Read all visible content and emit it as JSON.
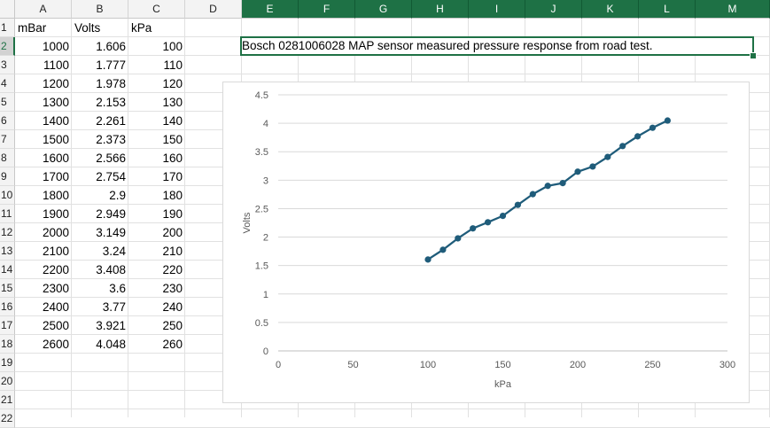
{
  "columns": [
    "A",
    "B",
    "C",
    "D",
    "E",
    "F",
    "G",
    "H",
    "I",
    "J",
    "K",
    "L",
    "M"
  ],
  "selected_columns": [
    "E",
    "F",
    "G",
    "H",
    "I",
    "J",
    "K",
    "L",
    "M"
  ],
  "rows": [
    "1",
    "2",
    "3",
    "4",
    "5",
    "6",
    "7",
    "8",
    "9",
    "10",
    "11",
    "12",
    "13",
    "14",
    "15",
    "16",
    "17",
    "18",
    "19",
    "20",
    "21",
    "22"
  ],
  "selected_row": "2",
  "table": {
    "headers": [
      "mBar",
      "Volts",
      "kPa"
    ],
    "rows": [
      [
        "1000",
        "1.606",
        "100"
      ],
      [
        "1100",
        "1.777",
        "110"
      ],
      [
        "1200",
        "1.978",
        "120"
      ],
      [
        "1300",
        "2.153",
        "130"
      ],
      [
        "1400",
        "2.261",
        "140"
      ],
      [
        "1500",
        "2.373",
        "150"
      ],
      [
        "1600",
        "2.566",
        "160"
      ],
      [
        "1700",
        "2.754",
        "170"
      ],
      [
        "1800",
        "2.9",
        "180"
      ],
      [
        "1900",
        "2.949",
        "190"
      ],
      [
        "2000",
        "3.149",
        "200"
      ],
      [
        "2100",
        "3.24",
        "210"
      ],
      [
        "2200",
        "3.408",
        "220"
      ],
      [
        "2300",
        "3.6",
        "230"
      ],
      [
        "2400",
        "3.77",
        "240"
      ],
      [
        "2500",
        "3.921",
        "250"
      ],
      [
        "2600",
        "4.048",
        "260"
      ]
    ]
  },
  "note": "Bosch 0281006028 MAP sensor measured pressure response from road test.",
  "chart_data": {
    "type": "scatter",
    "title": "",
    "xlabel": "kPa",
    "ylabel": "Volts",
    "xlim": [
      0,
      300
    ],
    "ylim": [
      0,
      4.5
    ],
    "x_ticks": [
      "0",
      "50",
      "100",
      "150",
      "200",
      "250",
      "300"
    ],
    "y_ticks": [
      "0",
      "0.5",
      "1",
      "1.5",
      "2",
      "2.5",
      "3",
      "3.5",
      "4",
      "4.5"
    ],
    "grid": true,
    "series": [
      {
        "name": "Volts",
        "color": "#1f5c7a",
        "x": [
          100,
          110,
          120,
          130,
          140,
          150,
          160,
          170,
          180,
          190,
          200,
          210,
          220,
          230,
          240,
          250,
          260
        ],
        "y": [
          1.606,
          1.777,
          1.978,
          2.153,
          2.261,
          2.373,
          2.566,
          2.754,
          2.9,
          2.949,
          3.149,
          3.24,
          3.408,
          3.6,
          3.77,
          3.921,
          4.048
        ]
      }
    ]
  }
}
